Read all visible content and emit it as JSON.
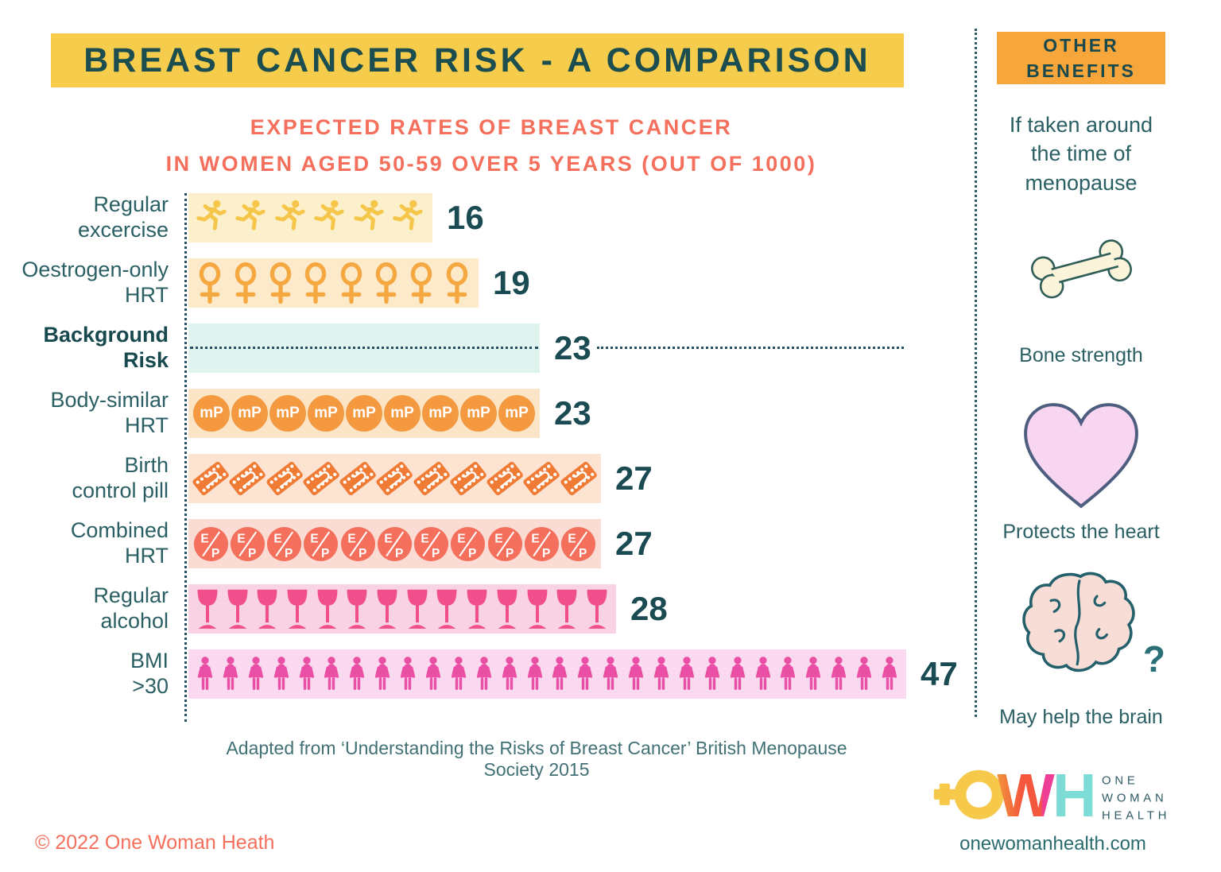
{
  "header": {
    "title": "BREAST CANCER RISK - A COMPARISON",
    "subtitle_lines": [
      "EXPECTED RATES OF BREAST CANCER",
      "IN WOMEN AGED 50-59 OVER 5 YEARS (OUT OF 1000)"
    ]
  },
  "chart_data": {
    "type": "bar",
    "variant": "pictogram",
    "title": "Expected rates of breast cancer in women aged 50-59 over 5 years (out of 1000)",
    "categories": [
      "Regular excercise",
      "Oestrogen-only HRT",
      "Background Risk",
      "Body-similar HRT",
      "Birth control pill",
      "Combined HRT",
      "Regular alcohol",
      "BMI >30"
    ],
    "values": [
      16,
      19,
      23,
      23,
      27,
      27,
      28,
      47
    ],
    "xlim": [
      0,
      47
    ],
    "legend": "none",
    "rows": [
      {
        "label_lines": [
          "Regular",
          "excercise"
        ],
        "value": 16,
        "icon": "runner",
        "icon_count": 6,
        "icon_color": "#F5C64A",
        "bar_color": "#FBF0CB",
        "bold": false
      },
      {
        "label_lines": [
          "Oestrogen-only",
          "HRT"
        ],
        "value": 19,
        "icon": "female",
        "icon_count": 8,
        "icon_color": "#F5A740",
        "bar_color": "#FCEACB",
        "bold": false
      },
      {
        "label_lines": [
          "Background",
          "Risk"
        ],
        "value": 23,
        "icon": "dotted-line",
        "icon_count": 0,
        "icon_color": "#265061",
        "bar_color": "#DFF4EE",
        "bold": true
      },
      {
        "label_lines": [
          "Body-similar",
          "HRT"
        ],
        "value": 23,
        "icon": "mp",
        "icon_count": 9,
        "icon_text": "mP",
        "icon_color": "#F4993F",
        "bar_color": "#FBE5C6",
        "bold": false
      },
      {
        "label_lines": [
          "Birth",
          "control pill"
        ],
        "value": 27,
        "icon": "pill",
        "icon_count": 11,
        "icon_color": "#EF7B35",
        "bar_color": "#FCE3D2",
        "bold": false
      },
      {
        "label_lines": [
          "Combined",
          "HRT"
        ],
        "value": 27,
        "icon": "ep",
        "icon_count": 11,
        "icon_text": "E/P",
        "icon_color": "#F4705C",
        "bar_color": "#FBDCD5",
        "bold": false
      },
      {
        "label_lines": [
          "Regular",
          "alcohol"
        ],
        "value": 28,
        "icon": "glass",
        "icon_count": 14,
        "icon_color": "#F14E8C",
        "bar_color": "#F9D3E3",
        "bold": false
      },
      {
        "label_lines": [
          "BMI",
          ">30"
        ],
        "value": 47,
        "icon": "woman",
        "icon_count": 28,
        "icon_color": "#EA4FA6",
        "bar_color": "#FAD9F0",
        "bold": false
      }
    ]
  },
  "sidebar": {
    "header": "OTHER BENEFITS",
    "subtitle": "If taken around the time of menopause",
    "benefits": [
      {
        "icon": "bone-icon",
        "label": "Bone strength"
      },
      {
        "icon": "heart-icon",
        "label": "Protects the heart"
      },
      {
        "icon": "brain-icon",
        "label": "May help the brain",
        "annotation": "?"
      }
    ]
  },
  "footer": {
    "source": "Adapted from ‘Understanding the Risks of Breast Cancer’ British Menopause Society 2015",
    "copyright": "© 2022 One Woman Heath",
    "logo_letters": "OWH",
    "logo_name_lines": [
      "ONE",
      "WOMAN",
      "HEALTH"
    ],
    "website": "onewomanhealth.com"
  },
  "colors": {
    "banner_yellow": "#F6CC4D",
    "benefits_orange": "#F6A63B",
    "coral": "#F4705C",
    "teal_dark": "#1C4E50",
    "teal_text": "#2A5F63"
  }
}
